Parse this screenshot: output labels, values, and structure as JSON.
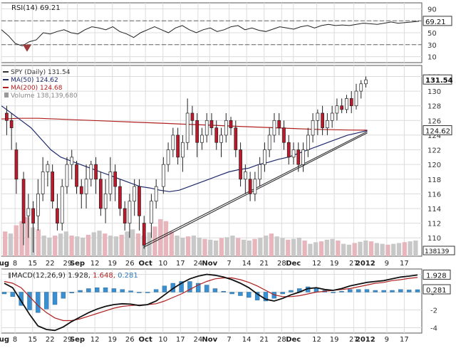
{
  "chart_data": [
    {
      "type": "line",
      "panel": "rsi",
      "title": "RSI(14) 69.21",
      "indicator_value": "69.21",
      "yticks": [
        "90",
        "70",
        "50",
        "30",
        "10"
      ],
      "ylim": [
        0,
        100
      ],
      "levels": [
        70,
        30
      ],
      "grid": true,
      "series": [
        {
          "name": "RSI(14)",
          "color": "#222222",
          "values": [
            55,
            45,
            32,
            28,
            35,
            38,
            50,
            48,
            52,
            55,
            50,
            48,
            55,
            60,
            58,
            55,
            60,
            52,
            48,
            42,
            50,
            55,
            60,
            55,
            50,
            58,
            62,
            55,
            50,
            55,
            58,
            52,
            55,
            60,
            62,
            55,
            58,
            54,
            52,
            56,
            60,
            58,
            56,
            60,
            62,
            58,
            62,
            64,
            62,
            63,
            62,
            64,
            66,
            65,
            64,
            66,
            68,
            66,
            67,
            68,
            69.21
          ]
        }
      ]
    },
    {
      "type": "candlestick",
      "panel": "price",
      "title": "SPY (Daily) 131.54",
      "legend": [
        {
          "label": "SPY (Daily) 131.54",
          "color": "#333333"
        },
        {
          "label": "MA(50) 124.62",
          "color": "#1f2a6b"
        },
        {
          "label": "MA(200) 124.68",
          "color": "#b02020"
        },
        {
          "label": "Volume 138,139,680",
          "color": "#888888"
        }
      ],
      "yticks": [
        "132",
        "130",
        "128",
        "126",
        "124",
        "122",
        "120",
        "118",
        "116",
        "114",
        "112",
        "110"
      ],
      "ylim": [
        107.5,
        133.5
      ],
      "last_price_label": "131.54",
      "ma50_label": "124.62",
      "volume_label": "138139",
      "up_color": "#ffffff",
      "down_color": "#c0182a",
      "candles": [
        {
          "x": 1,
          "o": 127,
          "c": 126,
          "h": 128,
          "l": 124
        },
        {
          "x": 3,
          "o": 126,
          "c": 125,
          "h": 127,
          "l": 122
        },
        {
          "x": 5,
          "o": 122,
          "c": 118,
          "h": 123,
          "l": 116
        },
        {
          "x": 8,
          "o": 118,
          "c": 112,
          "h": 119,
          "l": 109
        },
        {
          "x": 10,
          "o": 113,
          "c": 114,
          "h": 116,
          "l": 110
        },
        {
          "x": 12,
          "o": 114,
          "c": 112,
          "h": 115,
          "l": 108
        },
        {
          "x": 14,
          "o": 113,
          "c": 116,
          "h": 118,
          "l": 111
        },
        {
          "x": 16,
          "o": 116,
          "c": 119,
          "h": 121,
          "l": 115
        },
        {
          "x": 18,
          "o": 119,
          "c": 120,
          "h": 120.5,
          "l": 117
        },
        {
          "x": 20,
          "o": 119,
          "c": 115,
          "h": 120,
          "l": 114
        },
        {
          "x": 22,
          "o": 114,
          "c": 112,
          "h": 116,
          "l": 111
        },
        {
          "x": 24,
          "o": 112,
          "c": 117,
          "h": 118,
          "l": 111
        },
        {
          "x": 26,
          "o": 117,
          "c": 120,
          "h": 121,
          "l": 116
        },
        {
          "x": 28,
          "o": 120,
          "c": 121,
          "h": 122,
          "l": 118
        },
        {
          "x": 30,
          "o": 120,
          "c": 117,
          "h": 120.5,
          "l": 116
        },
        {
          "x": 32,
          "o": 117,
          "c": 116,
          "h": 118,
          "l": 114
        },
        {
          "x": 34,
          "o": 116,
          "c": 118,
          "h": 120,
          "l": 114
        },
        {
          "x": 36,
          "o": 118,
          "c": 120,
          "h": 120.5,
          "l": 117
        },
        {
          "x": 38,
          "o": 120,
          "c": 118,
          "h": 121,
          "l": 116
        },
        {
          "x": 40,
          "o": 118,
          "c": 114,
          "h": 119,
          "l": 113
        },
        {
          "x": 42,
          "o": 114,
          "c": 116,
          "h": 118,
          "l": 112
        },
        {
          "x": 44,
          "o": 116,
          "c": 119,
          "h": 121,
          "l": 115
        },
        {
          "x": 46,
          "o": 119,
          "c": 117,
          "h": 120,
          "l": 115
        },
        {
          "x": 48,
          "o": 117,
          "c": 114,
          "h": 118,
          "l": 113
        },
        {
          "x": 50,
          "o": 114,
          "c": 112,
          "h": 115,
          "l": 111
        },
        {
          "x": 52,
          "o": 112,
          "c": 115,
          "h": 116,
          "l": 110
        },
        {
          "x": 54,
          "o": 115,
          "c": 117,
          "h": 118,
          "l": 113
        },
        {
          "x": 56,
          "o": 117,
          "c": 113,
          "h": 118,
          "l": 111
        },
        {
          "x": 58,
          "o": 112,
          "c": 109,
          "h": 113,
          "l": 108.5
        },
        {
          "x": 61,
          "o": 112,
          "c": 115,
          "h": 116,
          "l": 110
        },
        {
          "x": 63,
          "o": 115,
          "c": 117,
          "h": 118,
          "l": 114
        },
        {
          "x": 66,
          "o": 117,
          "c": 120,
          "h": 121,
          "l": 116
        },
        {
          "x": 68,
          "o": 120,
          "c": 122,
          "h": 123,
          "l": 119
        },
        {
          "x": 70,
          "o": 122,
          "c": 124,
          "h": 125,
          "l": 121
        },
        {
          "x": 72,
          "o": 124,
          "c": 121,
          "h": 125,
          "l": 120
        },
        {
          "x": 74,
          "o": 121,
          "c": 123,
          "h": 124,
          "l": 119
        },
        {
          "x": 76,
          "o": 123,
          "c": 127,
          "h": 129,
          "l": 122
        },
        {
          "x": 78,
          "o": 127,
          "c": 126,
          "h": 128,
          "l": 124
        },
        {
          "x": 80,
          "o": 126,
          "c": 123,
          "h": 127,
          "l": 121
        },
        {
          "x": 82,
          "o": 123,
          "c": 124,
          "h": 125,
          "l": 122
        },
        {
          "x": 84,
          "o": 124,
          "c": 126,
          "h": 127,
          "l": 123
        },
        {
          "x": 86,
          "o": 126,
          "c": 125,
          "h": 127,
          "l": 124
        },
        {
          "x": 88,
          "o": 125,
          "c": 123,
          "h": 126,
          "l": 122
        },
        {
          "x": 90,
          "o": 123,
          "c": 124,
          "h": 125,
          "l": 121
        },
        {
          "x": 92,
          "o": 124,
          "c": 126,
          "h": 127,
          "l": 123
        },
        {
          "x": 94,
          "o": 126,
          "c": 125,
          "h": 126.5,
          "l": 124
        },
        {
          "x": 96,
          "o": 125,
          "c": 122,
          "h": 126,
          "l": 121
        },
        {
          "x": 98,
          "o": 122,
          "c": 118,
          "h": 123,
          "l": 117
        },
        {
          "x": 100,
          "o": 118,
          "c": 119,
          "h": 120,
          "l": 116
        },
        {
          "x": 102,
          "o": 118,
          "c": 116,
          "h": 119,
          "l": 115
        },
        {
          "x": 104,
          "o": 116,
          "c": 118,
          "h": 119,
          "l": 115
        },
        {
          "x": 106,
          "o": 118,
          "c": 120,
          "h": 121,
          "l": 117
        },
        {
          "x": 108,
          "o": 120,
          "c": 122,
          "h": 123,
          "l": 119
        },
        {
          "x": 110,
          "o": 122,
          "c": 124,
          "h": 125,
          "l": 121
        },
        {
          "x": 112,
          "o": 124,
          "c": 126,
          "h": 127,
          "l": 123
        },
        {
          "x": 114,
          "o": 126,
          "c": 125,
          "h": 127,
          "l": 124
        },
        {
          "x": 116,
          "o": 125,
          "c": 123,
          "h": 126,
          "l": 122
        },
        {
          "x": 118,
          "o": 123,
          "c": 121,
          "h": 124,
          "l": 120
        },
        {
          "x": 120,
          "o": 121,
          "c": 122,
          "h": 123,
          "l": 120
        },
        {
          "x": 122,
          "o": 122,
          "c": 120,
          "h": 123,
          "l": 119
        },
        {
          "x": 124,
          "o": 120,
          "c": 122,
          "h": 123,
          "l": 119
        },
        {
          "x": 126,
          "o": 122,
          "c": 124,
          "h": 125,
          "l": 121
        },
        {
          "x": 128,
          "o": 124,
          "c": 126,
          "h": 127,
          "l": 123
        },
        {
          "x": 130,
          "o": 126,
          "c": 127,
          "h": 127.5,
          "l": 124
        },
        {
          "x": 132,
          "o": 127,
          "c": 125,
          "h": 128,
          "l": 124
        },
        {
          "x": 134,
          "o": 125,
          "c": 126,
          "h": 127,
          "l": 124
        },
        {
          "x": 136,
          "o": 126,
          "c": 127,
          "h": 128,
          "l": 125
        },
        {
          "x": 138,
          "o": 127,
          "c": 128,
          "h": 129,
          "l": 126
        },
        {
          "x": 140,
          "o": 128,
          "c": 127.5,
          "h": 129,
          "l": 127
        },
        {
          "x": 142,
          "o": 127.5,
          "c": 129,
          "h": 129.5,
          "l": 127
        },
        {
          "x": 144,
          "o": 129,
          "c": 128,
          "h": 130,
          "l": 127
        },
        {
          "x": 146,
          "o": 128,
          "c": 130,
          "h": 131,
          "l": 127.5
        },
        {
          "x": 148,
          "o": 130,
          "c": 131,
          "h": 131.5,
          "l": 129
        },
        {
          "x": 150,
          "o": 131,
          "c": 131.54,
          "h": 132,
          "l": 130.5
        }
      ],
      "ma50": [
        128,
        127,
        126,
        125,
        123.5,
        122,
        121,
        120.5,
        120,
        119.5,
        119,
        118.5,
        118,
        117.5,
        117,
        116.8,
        116.5,
        116.3,
        116.5,
        117,
        117.5,
        118,
        118.5,
        119,
        119.3,
        119.5,
        120,
        120.3,
        120.7,
        121,
        121.5,
        122,
        122.5,
        123,
        123.5,
        124,
        124.3,
        124.62
      ],
      "ma200": [
        126.2,
        126.3,
        126.3,
        126.2,
        126.1,
        126.0,
        125.9,
        125.8,
        125.7,
        125.6,
        125.5,
        125.4,
        125.3,
        125.2,
        125.1,
        125.0,
        124.9,
        124.8,
        124.75,
        124.7,
        124.68
      ],
      "volume": [
        60,
        55,
        75,
        85,
        95,
        70,
        65,
        50,
        45,
        50,
        55,
        60,
        50,
        48,
        45,
        52,
        58,
        62,
        55,
        50,
        48,
        52,
        60,
        65,
        55,
        50,
        58,
        72,
        90,
        85,
        60,
        50,
        45,
        48,
        50,
        45,
        42,
        40,
        38,
        44,
        46,
        50,
        44,
        40,
        38,
        42,
        45,
        50,
        55,
        48,
        44,
        40,
        42,
        45,
        38,
        30,
        34,
        36,
        40,
        42,
        38,
        30,
        28,
        32,
        35,
        38,
        36,
        32,
        30,
        28,
        30,
        32,
        34,
        36,
        38
      ]
    },
    {
      "type": "line",
      "panel": "macd",
      "title": "MACD(12,26,9)",
      "values_text": [
        "1.928",
        "1.648",
        "0.281"
      ],
      "value_colors": [
        "#222222",
        "#b02020",
        "#2a78b8"
      ],
      "yticks": [
        "2",
        "0",
        "-2",
        "-4"
      ],
      "ylim": [
        -4.6,
        2.6
      ],
      "macd_label": "1.928",
      "hist_label": "0.281",
      "grid": true,
      "series": [
        {
          "name": "MACD",
          "color": "#111111",
          "values": [
            1.0,
            0.5,
            -1.0,
            -2.5,
            -3.8,
            -4.2,
            -4.3,
            -3.9,
            -3.3,
            -2.8,
            -2.3,
            -1.9,
            -1.6,
            -1.4,
            -1.3,
            -1.35,
            -1.5,
            -1.4,
            -1.0,
            -0.3,
            0.4,
            1.0,
            1.5,
            1.8,
            2.0,
            1.9,
            1.7,
            1.4,
            1.0,
            0.5,
            -0.2,
            -0.8,
            -1.0,
            -0.7,
            -0.3,
            0.0,
            0.4,
            0.5,
            0.3,
            0.2,
            0.4,
            0.7,
            0.9,
            1.1,
            1.2,
            1.3,
            1.5,
            1.7,
            1.8,
            1.928
          ]
        },
        {
          "name": "Signal",
          "color": "#b02020",
          "values": [
            1.2,
            1.0,
            0.5,
            -0.5,
            -1.5,
            -2.3,
            -2.9,
            -3.2,
            -3.2,
            -3.0,
            -2.7,
            -2.4,
            -2.1,
            -1.8,
            -1.6,
            -1.5,
            -1.45,
            -1.4,
            -1.3,
            -1.0,
            -0.6,
            -0.2,
            0.3,
            0.8,
            1.2,
            1.5,
            1.6,
            1.6,
            1.4,
            1.1,
            0.7,
            0.2,
            -0.3,
            -0.5,
            -0.5,
            -0.4,
            -0.2,
            0.0,
            0.1,
            0.2,
            0.3,
            0.4,
            0.6,
            0.8,
            1.0,
            1.1,
            1.3,
            1.4,
            1.55,
            1.648
          ]
        },
        {
          "name": "Histogram",
          "color": "#3a8fd0",
          "values": [
            -0.2,
            -0.5,
            -1.5,
            -2.0,
            -2.3,
            -1.9,
            -1.4,
            -0.7,
            -0.1,
            0.2,
            0.4,
            0.5,
            0.5,
            0.4,
            0.3,
            0.15,
            -0.05,
            0.0,
            0.3,
            0.7,
            1.0,
            1.2,
            1.2,
            1.0,
            0.8,
            0.4,
            0.1,
            -0.2,
            -0.4,
            -0.6,
            -0.9,
            -1.0,
            -0.7,
            -0.2,
            0.2,
            0.4,
            0.6,
            0.5,
            0.2,
            0.0,
            0.1,
            0.3,
            0.3,
            0.3,
            0.2,
            0.2,
            0.2,
            0.3,
            0.25,
            0.281
          ]
        }
      ]
    }
  ],
  "x_axis": {
    "labels": [
      {
        "text": "Aug",
        "x": 0,
        "bold": true
      },
      {
        "text": "8",
        "x": 7,
        "bold": false
      },
      {
        "text": "15",
        "x": 16,
        "bold": false
      },
      {
        "text": "22",
        "x": 25,
        "bold": false
      },
      {
        "text": "29",
        "x": 34,
        "bold": false
      },
      {
        "text": "Sep",
        "x": 39,
        "bold": true
      },
      {
        "text": "12",
        "x": 48,
        "bold": false
      },
      {
        "text": "19",
        "x": 57,
        "bold": false
      },
      {
        "text": "26",
        "x": 66,
        "bold": false
      },
      {
        "text": "Oct",
        "x": 74,
        "bold": true
      },
      {
        "text": "10",
        "x": 83,
        "bold": false
      },
      {
        "text": "17",
        "x": 92,
        "bold": false
      },
      {
        "text": "24",
        "x": 101,
        "bold": false
      },
      {
        "text": "Nov",
        "x": 107,
        "bold": true
      },
      {
        "text": "7",
        "x": 117,
        "bold": false
      },
      {
        "text": "14",
        "x": 126,
        "bold": false
      },
      {
        "text": "21",
        "x": 135,
        "bold": false
      },
      {
        "text": "28",
        "x": 144,
        "bold": false
      },
      {
        "text": "Dec",
        "x": 150,
        "bold": true
      },
      {
        "text": "12",
        "x": 162,
        "bold": false
      },
      {
        "text": "19",
        "x": 171,
        "bold": false
      },
      {
        "text": "27",
        "x": 181,
        "bold": false
      },
      {
        "text": "2012",
        "x": 187,
        "bold": true
      },
      {
        "text": "9",
        "x": 198,
        "bold": false
      },
      {
        "text": "17",
        "x": 207,
        "bold": false
      }
    ],
    "xmax": 216
  }
}
